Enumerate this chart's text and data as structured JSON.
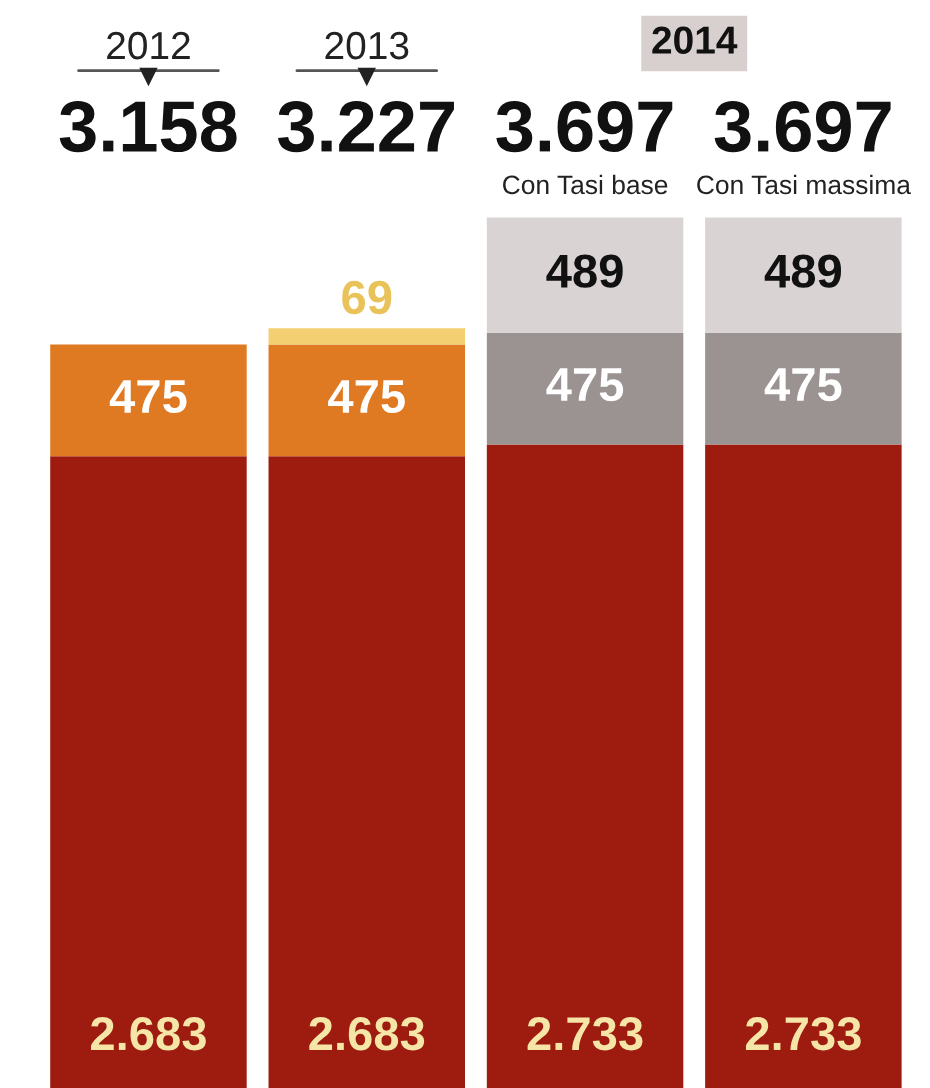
{
  "chart_data": {
    "type": "bar",
    "stacked": true,
    "categories": [
      null,
      null,
      "Con Tasi base",
      "Con Tasi massima"
    ],
    "series": [
      {
        "colors": [
          "#9e1b0f",
          "#9e1b0f",
          "#9e1b0f",
          "#9e1b0f"
        ],
        "values": [
          2683,
          2683,
          2733,
          2733
        ],
        "value_labels": [
          "2.683",
          "2.683",
          "2.733",
          "2.733"
        ]
      },
      {
        "colors": [
          "#e07a22",
          "#e07a22",
          "#9b9292",
          "#9b9292"
        ],
        "values": [
          475,
          475,
          475,
          475
        ],
        "value_labels": [
          "475",
          "475",
          "475",
          "475"
        ]
      },
      {
        "colors": [
          "#f3cf72",
          "#f3cf72",
          "#d9d3d3",
          "#d9d3d3"
        ],
        "values": [
          null,
          69,
          489,
          489
        ],
        "value_labels": [
          null,
          "69",
          "489",
          "489"
        ]
      }
    ],
    "totals": [
      "3.158",
      "3.227",
      "3.697",
      "3.697"
    ],
    "annotations": [
      "2012",
      "2013",
      "2014"
    ]
  }
}
